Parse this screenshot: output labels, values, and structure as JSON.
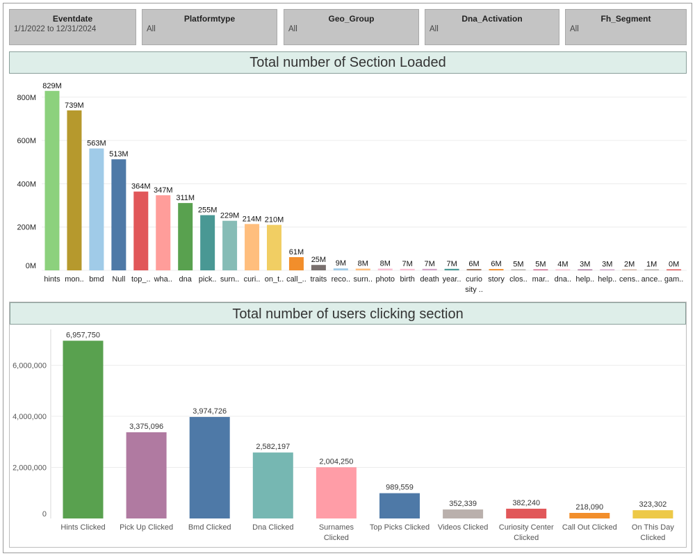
{
  "filters": [
    {
      "title": "Eventdate",
      "value": "1/1/2022 to 12/31/2024"
    },
    {
      "title": "Platformtype",
      "value": "All"
    },
    {
      "title": "Geo_Group",
      "value": "All"
    },
    {
      "title": "Dna_Activation",
      "value": "All"
    },
    {
      "title": "Fh_Segment",
      "value": "All"
    }
  ],
  "chart_data": [
    {
      "type": "bar",
      "title": "Total number of Section Loaded",
      "xlabel": "",
      "ylabel": "",
      "ylim": [
        0,
        870
      ],
      "ytick_values": [
        0,
        200,
        400,
        600,
        800
      ],
      "ytick_labels": [
        "0M",
        "200M",
        "400M",
        "600M",
        "800M"
      ],
      "grid": true,
      "categories": [
        "hints",
        "mon..",
        "bmd",
        "Null",
        "top_..",
        "wha..",
        "dna",
        "pick..",
        "surn..",
        "curi..",
        "on_t..",
        "call_..",
        "traits",
        "reco..",
        "surn..",
        "photo",
        "birth",
        "death",
        "year..",
        "curio sity ..",
        "story",
        "clos..",
        "mar..",
        "dna..",
        "help..",
        "help..",
        "cens..",
        "ance..",
        "gam.."
      ],
      "values": [
        829,
        739,
        563,
        513,
        364,
        347,
        311,
        255,
        229,
        214,
        210,
        61,
        25,
        9,
        8,
        8,
        7,
        7,
        7,
        6,
        6,
        5,
        5,
        4,
        3,
        3,
        2,
        1,
        0
      ],
      "data_labels": [
        "829M",
        "739M",
        "563M",
        "513M",
        "364M",
        "347M",
        "311M",
        "255M",
        "229M",
        "214M",
        "210M",
        "61M",
        "25M",
        "9M",
        "8M",
        "8M",
        "7M",
        "7M",
        "7M",
        "6M",
        "6M",
        "5M",
        "5M",
        "4M",
        "3M",
        "3M",
        "2M",
        "1M",
        "0M"
      ],
      "colors": [
        "#8cd17d",
        "#b6992d",
        "#a0cbe8",
        "#4e79a7",
        "#e15759",
        "#ff9d9a",
        "#59a14f",
        "#499894",
        "#86bcb6",
        "#ffbe7d",
        "#f1ce63",
        "#f28e2b",
        "#79706e",
        "#a0cbe8",
        "#ffbe7d",
        "#fabfd2",
        "#fabfd2",
        "#d4a6c8",
        "#499894",
        "#9d7660",
        "#f28e2b",
        "#bab0ac",
        "#d37295",
        "#fabfd2",
        "#b07aa1",
        "#d4a6c8",
        "#d7b5a6",
        "#bab0ac",
        "#e15759"
      ]
    },
    {
      "type": "bar",
      "title": "Total number of users clicking section",
      "xlabel": "",
      "ylabel": "",
      "ylim": [
        0,
        7400000
      ],
      "ytick_values": [
        0,
        2000000,
        4000000,
        6000000
      ],
      "ytick_labels": [
        "0",
        "2,000,000",
        "4,000,000",
        "6,000,000"
      ],
      "grid": true,
      "categories": [
        "Hints Clicked",
        "Pick Up Clicked",
        "Bmd Clicked",
        "Dna Clicked",
        "Surnames Clicked",
        "Top Picks Clicked",
        "Videos Clicked",
        "Curiosity Center Clicked",
        "Call Out Clicked",
        "On This Day Clicked"
      ],
      "category_lines": [
        [
          "Hints Clicked"
        ],
        [
          "Pick Up Clicked"
        ],
        [
          "Bmd Clicked"
        ],
        [
          "Dna Clicked"
        ],
        [
          "Surnames",
          "Clicked"
        ],
        [
          "Top Picks Clicked"
        ],
        [
          "Videos Clicked"
        ],
        [
          "Curiosity Center",
          "Clicked"
        ],
        [
          "Call Out Clicked"
        ],
        [
          "On This Day",
          "Clicked"
        ]
      ],
      "values": [
        6957750,
        3375096,
        3974726,
        2582197,
        2004250,
        989559,
        352339,
        382240,
        218090,
        323302
      ],
      "data_labels": [
        "6,957,750",
        "3,375,096",
        "3,974,726",
        "2,582,197",
        "2,004,250",
        "989,559",
        "352,339",
        "382,240",
        "218,090",
        "323,302"
      ],
      "colors": [
        "#59a14f",
        "#b07aa1",
        "#4e79a7",
        "#76b7b2",
        "#ff9da7",
        "#4e79a7",
        "#bab0ac",
        "#e15759",
        "#f28e2b",
        "#edc948"
      ]
    }
  ]
}
